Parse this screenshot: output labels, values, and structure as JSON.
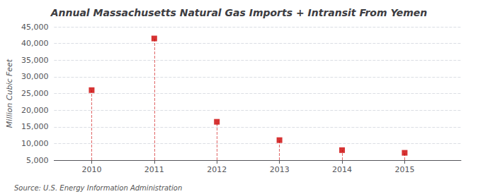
{
  "chart_data": {
    "type": "scatter",
    "title": "Annual Massachusetts Natural Gas Imports + Intransit From Yemen",
    "ylabel": "Million Cubic Feet",
    "source": "Source: U.S. Energy Information Administration",
    "x": [
      2010,
      2011,
      2012,
      2013,
      2014,
      2015
    ],
    "values": [
      26000,
      41500,
      16500,
      11000,
      8000,
      7200
    ],
    "color": "#cc0000",
    "marker": "square",
    "xlim": [
      2009.4,
      2015.9
    ],
    "xticks": [
      2010,
      2011,
      2012,
      2013,
      2014,
      2015
    ],
    "ylim": [
      5000,
      45000
    ],
    "yticks": [
      {
        "value": 5000,
        "label": "5,000"
      },
      {
        "value": 10000,
        "label": "10,000"
      },
      {
        "value": 15000,
        "label": "15,000"
      },
      {
        "value": 20000,
        "label": "20,000"
      },
      {
        "value": 25000,
        "label": "25,000"
      },
      {
        "value": 30000,
        "label": "30,000"
      },
      {
        "value": 35000,
        "label": "35,000"
      },
      {
        "value": 40000,
        "label": "40,000"
      },
      {
        "value": 45000,
        "label": "45,000"
      }
    ],
    "grid": true
  }
}
